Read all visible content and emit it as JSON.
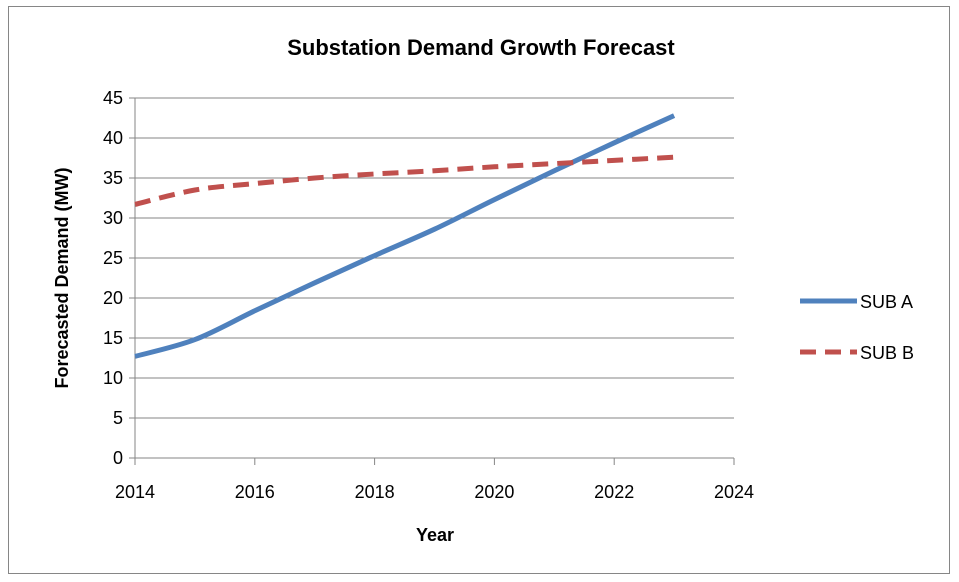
{
  "chart_data": {
    "type": "line",
    "title": "Substation Demand Growth Forecast",
    "xlabel": "Year",
    "ylabel": "Forecasted Demand (MW)",
    "xlim": [
      2014,
      2024
    ],
    "ylim": [
      0,
      45
    ],
    "x_ticks": [
      2014,
      2016,
      2018,
      2020,
      2022,
      2024
    ],
    "y_ticks": [
      0,
      5,
      10,
      15,
      20,
      25,
      30,
      35,
      40,
      45
    ],
    "grid": "horizontal",
    "legend_position": "right",
    "series": [
      {
        "name": "SUB A",
        "color": "#4f81bd",
        "style": "solid",
        "x": [
          2014,
          2015,
          2016,
          2017,
          2018,
          2019,
          2020,
          2021,
          2022,
          2023
        ],
        "values": [
          12.7,
          14.8,
          18.4,
          21.9,
          25.3,
          28.6,
          32.3,
          35.9,
          39.4,
          42.8
        ]
      },
      {
        "name": "SUB B",
        "color": "#c0504d",
        "style": "dashed",
        "x": [
          2014,
          2015,
          2016,
          2017,
          2018,
          2019,
          2020,
          2021,
          2022,
          2023
        ],
        "values": [
          31.7,
          33.5,
          34.3,
          35.0,
          35.5,
          35.9,
          36.4,
          36.8,
          37.2,
          37.6
        ]
      }
    ]
  }
}
